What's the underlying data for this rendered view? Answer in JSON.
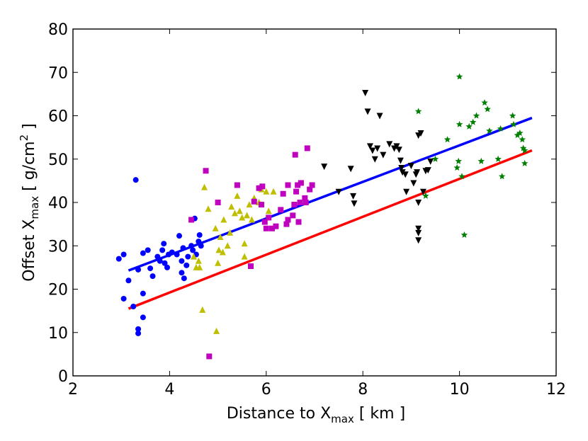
{
  "chart_data": {
    "type": "scatter",
    "title": "",
    "xlabel": {
      "main": "Distance to X",
      "sub": "max",
      "tail": " [ km ]"
    },
    "ylabel": {
      "main": "Offset X",
      "sub": "max",
      "mid": " [ g/cm",
      "sup": "2",
      "tail": " ]"
    },
    "xlim": [
      2,
      12
    ],
    "ylim": [
      0,
      80
    ],
    "xticks": [
      2,
      4,
      6,
      8,
      10,
      12
    ],
    "yticks": [
      0,
      10,
      20,
      30,
      40,
      50,
      60,
      70,
      80
    ],
    "grid": false,
    "series": [
      {
        "name": "blue-circles",
        "marker": "circle",
        "color": "#0000ff",
        "points": [
          [
            2.95,
            27
          ],
          [
            3.05,
            28
          ],
          [
            3.05,
            17.8
          ],
          [
            3.15,
            22
          ],
          [
            3.25,
            16
          ],
          [
            3.3,
            45.2
          ],
          [
            3.35,
            24.5
          ],
          [
            3.35,
            10.8
          ],
          [
            3.35,
            9.8
          ],
          [
            3.45,
            28.3
          ],
          [
            3.45,
            19
          ],
          [
            3.45,
            13.5
          ],
          [
            3.55,
            29
          ],
          [
            3.6,
            24.8
          ],
          [
            3.65,
            23
          ],
          [
            3.75,
            27.5
          ],
          [
            3.8,
            26.5
          ],
          [
            3.85,
            29
          ],
          [
            3.88,
            30.5
          ],
          [
            3.9,
            26
          ],
          [
            3.95,
            25
          ],
          [
            3.98,
            28
          ],
          [
            4.05,
            28.5
          ],
          [
            4.15,
            28
          ],
          [
            4.2,
            32.3
          ],
          [
            4.25,
            23.8
          ],
          [
            4.25,
            26.5
          ],
          [
            4.28,
            29.5
          ],
          [
            4.3,
            22.5
          ],
          [
            4.35,
            25.5
          ],
          [
            4.38,
            27.5
          ],
          [
            4.45,
            30
          ],
          [
            4.48,
            29
          ],
          [
            4.52,
            36.3
          ],
          [
            4.55,
            28
          ],
          [
            4.6,
            31
          ],
          [
            4.62,
            32.5
          ],
          [
            4.65,
            30
          ]
        ]
      },
      {
        "name": "yellow-triangles",
        "marker": "triangle-up",
        "color": "#bfbf00",
        "points": [
          [
            4.5,
            27.5
          ],
          [
            4.55,
            25
          ],
          [
            4.6,
            26.5
          ],
          [
            4.62,
            25
          ],
          [
            4.68,
            15.2
          ],
          [
            4.72,
            43.5
          ],
          [
            4.8,
            38.5
          ],
          [
            4.95,
            34
          ],
          [
            4.97,
            10.3
          ],
          [
            5.0,
            26
          ],
          [
            5.02,
            29
          ],
          [
            5.05,
            32
          ],
          [
            5.1,
            28.5
          ],
          [
            5.12,
            36
          ],
          [
            5.2,
            30
          ],
          [
            5.25,
            33
          ],
          [
            5.28,
            39
          ],
          [
            5.35,
            37.5
          ],
          [
            5.4,
            41.5
          ],
          [
            5.45,
            38
          ],
          [
            5.5,
            36.5
          ],
          [
            5.55,
            27.5
          ],
          [
            5.55,
            30.5
          ],
          [
            5.6,
            37
          ],
          [
            5.65,
            39.5
          ],
          [
            5.7,
            36
          ],
          [
            5.75,
            41
          ],
          [
            5.85,
            40
          ],
          [
            5.9,
            43
          ],
          [
            6.0,
            42.5
          ],
          [
            6.05,
            38
          ],
          [
            6.15,
            42.5
          ]
        ]
      },
      {
        "name": "magenta-squares",
        "marker": "square",
        "color": "#bf00bf",
        "points": [
          [
            4.45,
            36
          ],
          [
            4.75,
            47.3
          ],
          [
            4.82,
            4.5
          ],
          [
            5.0,
            40
          ],
          [
            5.4,
            44
          ],
          [
            5.68,
            25.3
          ],
          [
            5.75,
            40.2
          ],
          [
            5.85,
            43.3
          ],
          [
            5.9,
            39.5
          ],
          [
            5.92,
            43.7
          ],
          [
            5.97,
            35.5
          ],
          [
            6.0,
            34
          ],
          [
            6.05,
            36.5
          ],
          [
            6.12,
            34
          ],
          [
            6.2,
            34.5
          ],
          [
            6.3,
            38.3
          ],
          [
            6.35,
            42
          ],
          [
            6.42,
            35
          ],
          [
            6.45,
            36
          ],
          [
            6.45,
            44
          ],
          [
            6.55,
            37
          ],
          [
            6.58,
            39.5
          ],
          [
            6.6,
            51
          ],
          [
            6.62,
            42.5
          ],
          [
            6.65,
            44
          ],
          [
            6.67,
            35.5
          ],
          [
            6.7,
            40
          ],
          [
            6.72,
            44.5
          ],
          [
            6.8,
            41
          ],
          [
            6.82,
            40
          ],
          [
            6.85,
            52.5
          ],
          [
            6.9,
            43
          ],
          [
            6.95,
            44
          ]
        ]
      },
      {
        "name": "black-down-triangles",
        "marker": "triangle-down",
        "color": "#000000",
        "points": [
          [
            7.2,
            48.3
          ],
          [
            7.5,
            42.5
          ],
          [
            7.75,
            47.8
          ],
          [
            7.8,
            41.5
          ],
          [
            7.82,
            39.8
          ],
          [
            8.05,
            65.3
          ],
          [
            8.1,
            61
          ],
          [
            8.15,
            53
          ],
          [
            8.2,
            52
          ],
          [
            8.25,
            50
          ],
          [
            8.3,
            52.5
          ],
          [
            8.35,
            60
          ],
          [
            8.42,
            51
          ],
          [
            8.55,
            53.5
          ],
          [
            8.65,
            52.5
          ],
          [
            8.7,
            53
          ],
          [
            8.75,
            52.2
          ],
          [
            8.78,
            49.7
          ],
          [
            8.8,
            48
          ],
          [
            8.82,
            47
          ],
          [
            8.88,
            46.5
          ],
          [
            8.9,
            42.5
          ],
          [
            9.0,
            48.5
          ],
          [
            9.05,
            44.5
          ],
          [
            9.1,
            46.5
          ],
          [
            9.12,
            47
          ],
          [
            9.15,
            40
          ],
          [
            9.15,
            55.5
          ],
          [
            9.15,
            34
          ],
          [
            9.15,
            33
          ],
          [
            9.15,
            31.3
          ],
          [
            9.2,
            56
          ],
          [
            9.25,
            42.5
          ],
          [
            9.3,
            47.3
          ],
          [
            9.35,
            47.5
          ],
          [
            9.4,
            49.5
          ]
        ]
      },
      {
        "name": "green-stars",
        "marker": "star",
        "color": "#008000",
        "points": [
          [
            9.15,
            61
          ],
          [
            9.3,
            41.5
          ],
          [
            9.5,
            50
          ],
          [
            9.75,
            54.5
          ],
          [
            9.95,
            48
          ],
          [
            9.98,
            49.5
          ],
          [
            10.0,
            58
          ],
          [
            10.0,
            69
          ],
          [
            10.05,
            46
          ],
          [
            10.1,
            32.5
          ],
          [
            10.2,
            57.5
          ],
          [
            10.28,
            58.5
          ],
          [
            10.35,
            60
          ],
          [
            10.45,
            49.5
          ],
          [
            10.52,
            63
          ],
          [
            10.58,
            61.5
          ],
          [
            10.62,
            56.5
          ],
          [
            10.8,
            50
          ],
          [
            10.85,
            57
          ],
          [
            10.88,
            46
          ],
          [
            11.1,
            60
          ],
          [
            11.12,
            58
          ],
          [
            11.2,
            55.5
          ],
          [
            11.25,
            56
          ],
          [
            11.3,
            54.5
          ],
          [
            11.32,
            52.5
          ],
          [
            11.35,
            52
          ],
          [
            11.35,
            49
          ]
        ]
      }
    ],
    "lines": [
      {
        "name": "blue-fit-line",
        "color": "#0000ff",
        "x": [
          3.15,
          11.5
        ],
        "y": [
          24.3,
          59.5
        ]
      },
      {
        "name": "red-fit-line",
        "color": "#ff0000",
        "x": [
          3.15,
          11.5
        ],
        "y": [
          15.5,
          52
        ]
      }
    ]
  }
}
